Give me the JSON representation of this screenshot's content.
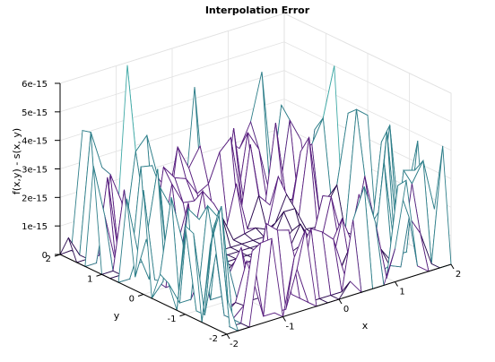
{
  "chart_data": {
    "type": "surface",
    "title": "Interpolation Error",
    "xlabel": "x",
    "ylabel": "y",
    "zlabel": "f(x,y) - s(x, y)",
    "xlim": [
      -2,
      2
    ],
    "ylim": [
      -2,
      2
    ],
    "zlim": [
      0,
      6e-15
    ],
    "x_ticks": [
      "-2",
      "-1",
      "0",
      "1",
      "2"
    ],
    "y_ticks": [
      "-2",
      "-1",
      "0",
      "1",
      "2"
    ],
    "z_ticks": [
      "0",
      "1e-15",
      "2e-15",
      "3e-15",
      "4e-15",
      "5e-15",
      "6e-15"
    ],
    "grid": true,
    "peak_values": [
      {
        "x": -0.8,
        "y": 2.0,
        "z": 5.9e-15
      },
      {
        "x": 2.0,
        "y": 0.8,
        "z": 5e-15
      },
      {
        "x": -1.6,
        "y": 2.0,
        "z": 4.1e-15
      },
      {
        "x": 0.4,
        "y": 2.0,
        "z": 4.4e-15
      },
      {
        "x": 1.6,
        "y": 2.0,
        "z": 4.2e-15
      }
    ],
    "colors": [
      "#2b0a4f",
      "#5a2180",
      "#2f7f8a",
      "#3fa9a6"
    ]
  }
}
